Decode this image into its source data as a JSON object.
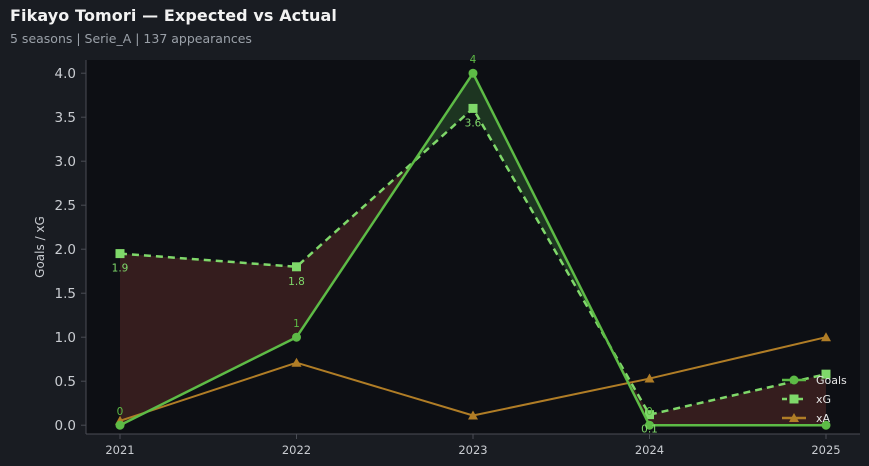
{
  "header": {
    "title": "Fikayo Tomori — Expected vs Actual",
    "subtitle": "5 seasons | Serie_A | 137 appearances"
  },
  "colors": {
    "page_background": "#191c22",
    "plot_background": "#0d0f14",
    "goals": "#5dbb46",
    "xg": "#7fd86a",
    "xa": "#b07d26",
    "shortfall_fill": "#3a1f1f",
    "surplus_fill": "#1f3a22",
    "axis_text": "#c9ccd1",
    "axis_line": "#4a4d55"
  },
  "chart_data": {
    "type": "line",
    "x": [
      "2021",
      "2022",
      "2023",
      "2024",
      "2025"
    ],
    "series": [
      {
        "name": "Goals",
        "values": [
          0,
          1,
          4,
          0,
          0
        ],
        "style": "solid",
        "marker": "circle",
        "color": "#5dbb46",
        "labels": [
          "0",
          "1",
          "4",
          "0",
          ""
        ]
      },
      {
        "name": "xG",
        "values": [
          1.95,
          1.8,
          3.6,
          0.12,
          0.58
        ],
        "style": "dashed",
        "marker": "square",
        "color": "#7fd86a",
        "labels": [
          "1.9",
          "1.8",
          "3.6",
          "0.1",
          ""
        ]
      },
      {
        "name": "xA",
        "values": [
          0.05,
          0.71,
          0.11,
          0.53,
          1.0
        ],
        "style": "solid",
        "marker": "triangle",
        "color": "#b07d26"
      }
    ],
    "ylabel": "Goals / xG",
    "xlabel": "",
    "ylim": [
      -0.1,
      4.15
    ],
    "yticks": [
      "0.0",
      "0.5",
      "1.0",
      "1.5",
      "2.0",
      "2.5",
      "3.0",
      "3.5",
      "4.0"
    ],
    "legend_position": "bottom-right",
    "grid": false,
    "fill_between": "Goals vs xG"
  }
}
